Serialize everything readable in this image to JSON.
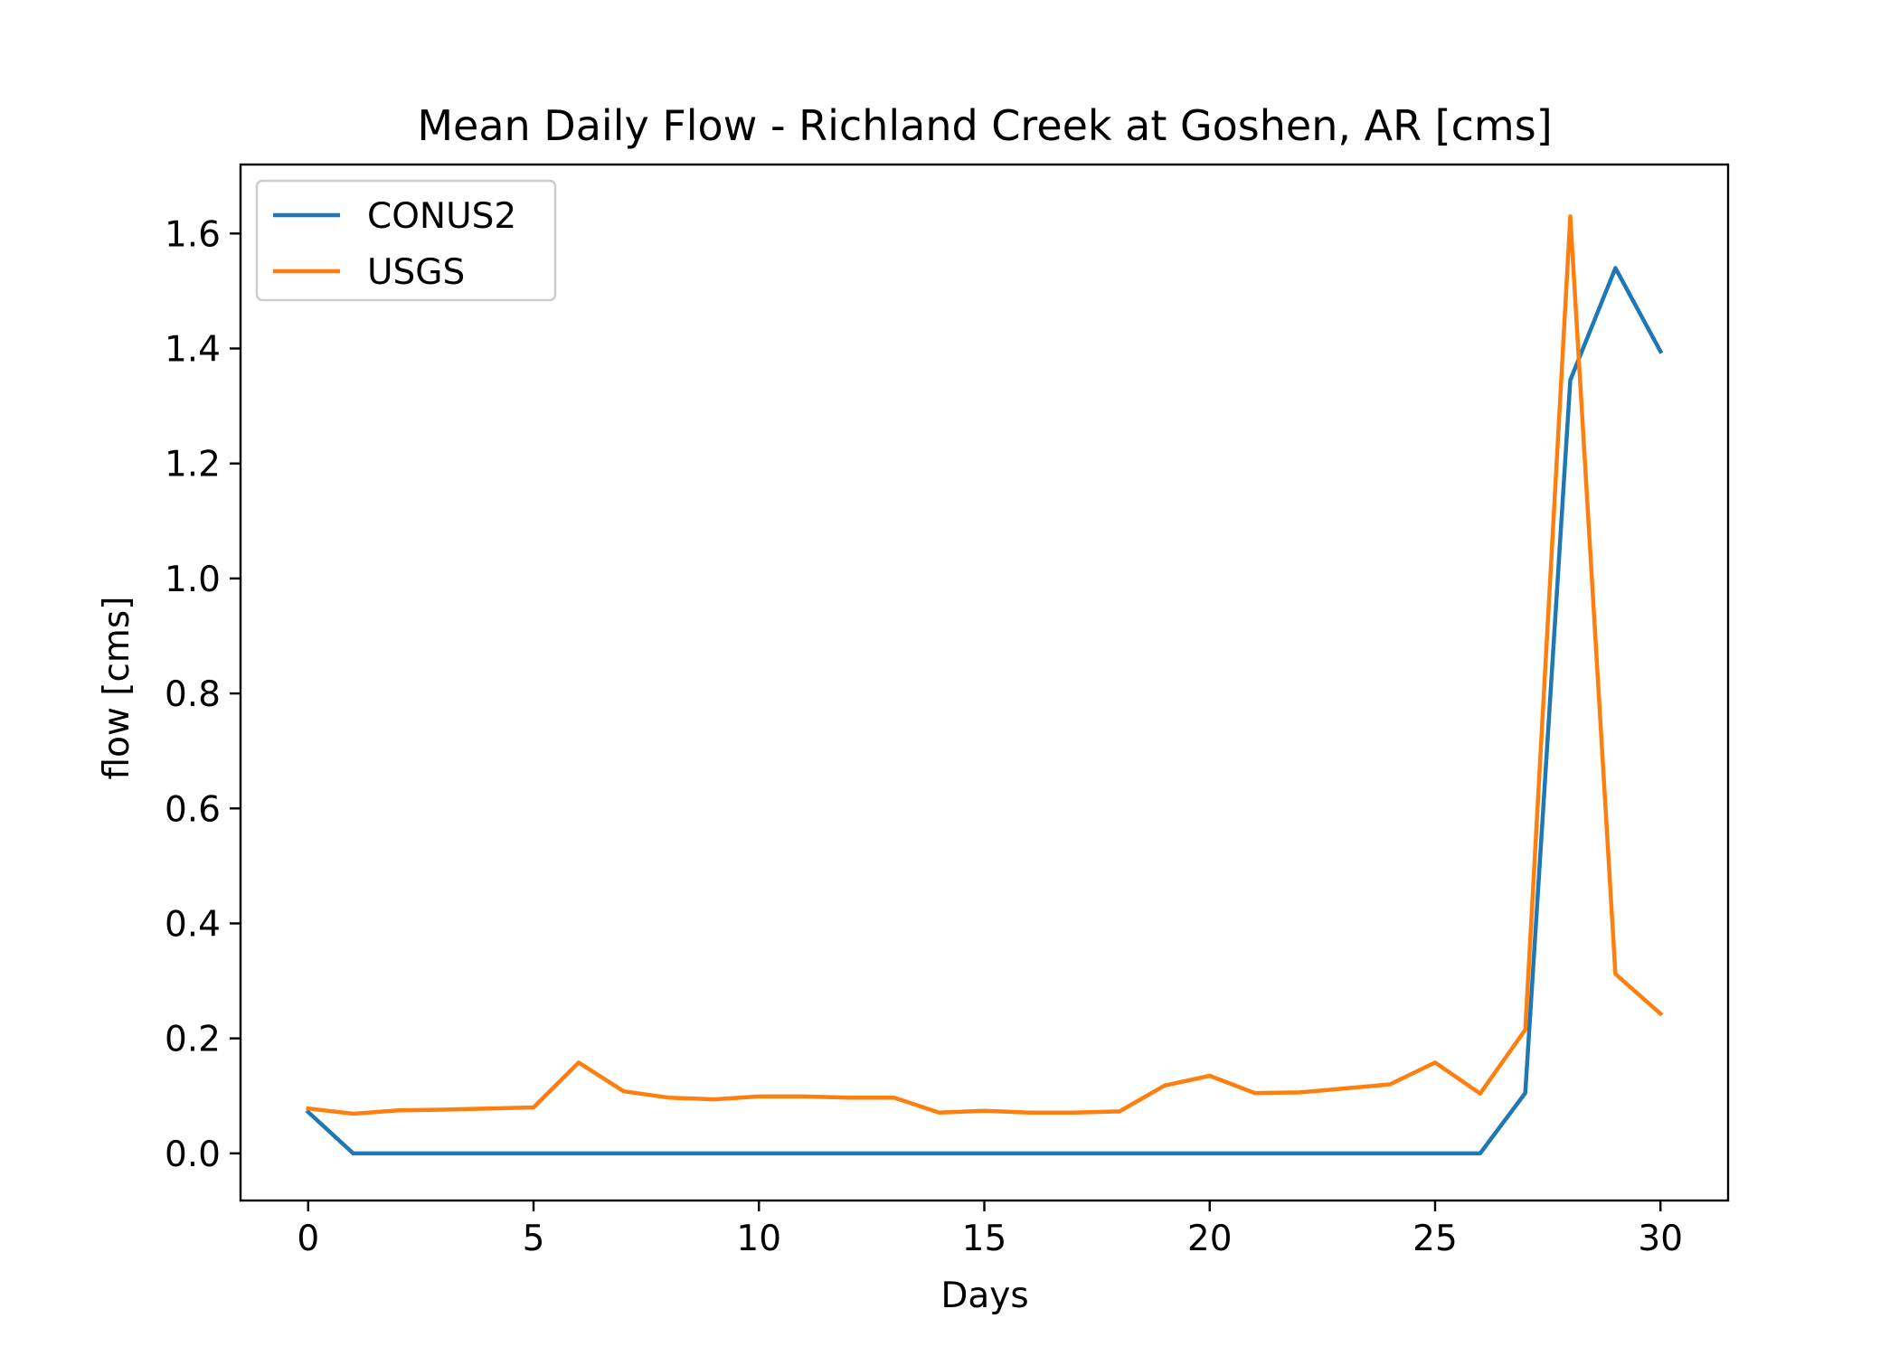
{
  "chart_data": {
    "type": "line",
    "title": "Mean Daily Flow - Richland Creek at Goshen, AR [cms]",
    "xlabel": "Days",
    "ylabel": "flow [cms]",
    "xlim": [
      -1.5,
      31.5
    ],
    "ylim": [
      -0.082,
      1.72
    ],
    "xticks": [
      0,
      5,
      10,
      15,
      20,
      25,
      30
    ],
    "xtick_labels": [
      "0",
      "5",
      "10",
      "15",
      "20",
      "25",
      "30"
    ],
    "yticks": [
      0.0,
      0.2,
      0.4,
      0.6,
      0.8,
      1.0,
      1.2,
      1.4,
      1.6
    ],
    "ytick_labels": [
      "0.0",
      "0.2",
      "0.4",
      "0.6",
      "0.8",
      "1.0",
      "1.2",
      "1.4",
      "1.6"
    ],
    "grid": false,
    "legend_position": "top-left",
    "x": [
      0,
      1,
      2,
      3,
      4,
      5,
      6,
      7,
      8,
      9,
      10,
      11,
      12,
      13,
      14,
      15,
      16,
      17,
      18,
      19,
      20,
      21,
      22,
      23,
      24,
      25,
      26,
      27,
      28,
      29,
      30
    ],
    "series": [
      {
        "name": "CONUS2",
        "color": "#1f77b4",
        "values": [
          0.072,
          0,
          0,
          0,
          0,
          0,
          0,
          0,
          0,
          0,
          0,
          0,
          0,
          0,
          0,
          0,
          0,
          0,
          0,
          0,
          0,
          0,
          0,
          0,
          0,
          0,
          0,
          0.105,
          1.345,
          1.54,
          1.395
        ]
      },
      {
        "name": "USGS",
        "color": "#ff7f0e",
        "values": [
          0.078,
          0.069,
          0.075,
          0.076,
          0.078,
          0.08,
          0.158,
          0.108,
          0.097,
          0.094,
          0.099,
          0.099,
          0.097,
          0.097,
          0.071,
          0.074,
          0.071,
          0.071,
          0.073,
          0.118,
          0.135,
          0.105,
          0.106,
          0.113,
          0.12,
          0.158,
          0.104,
          0.215,
          1.63,
          0.312,
          0.243
        ]
      }
    ]
  }
}
